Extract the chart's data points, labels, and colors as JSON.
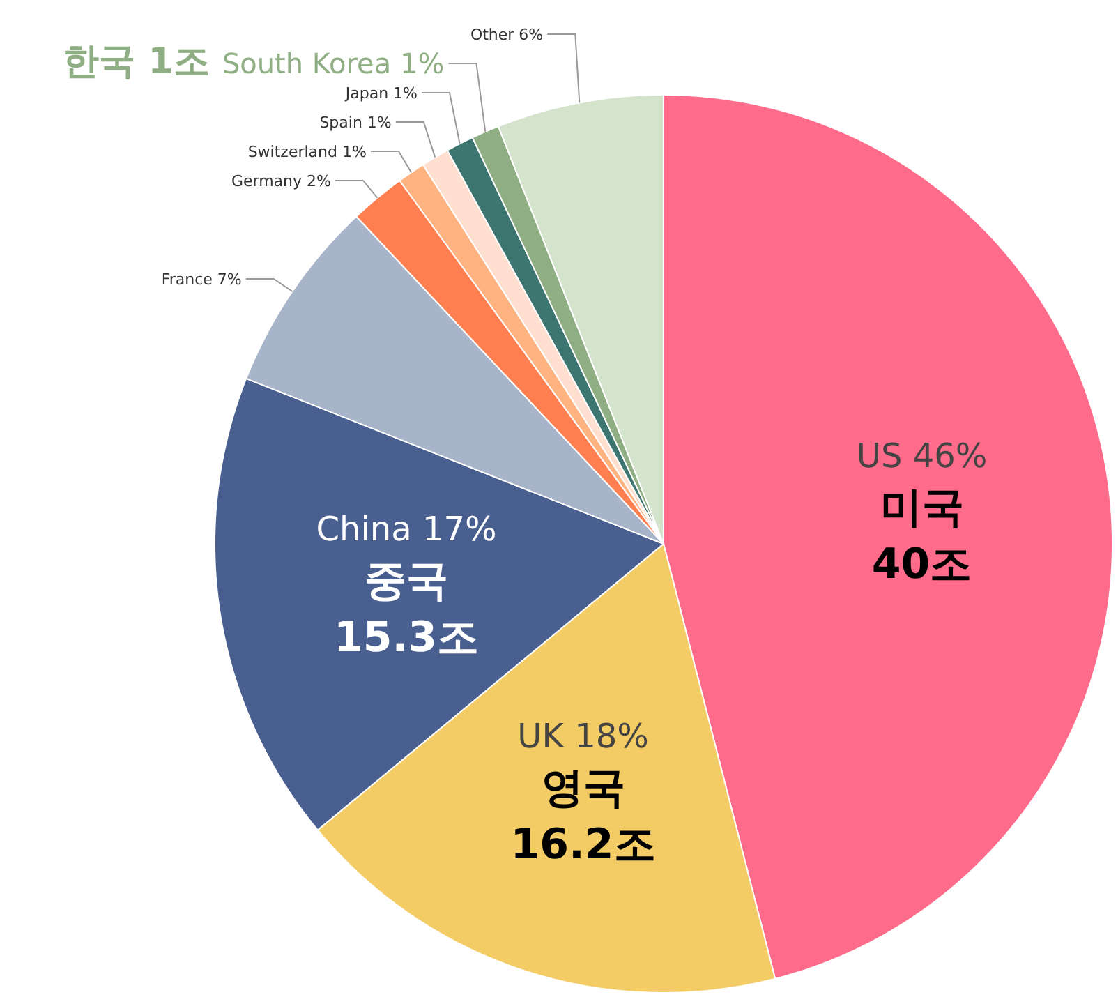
{
  "chart_data": {
    "type": "pie",
    "categories": [
      "US",
      "UK",
      "China",
      "France",
      "Germany",
      "Switzerland",
      "Spain",
      "Japan",
      "South Korea",
      "Other"
    ],
    "values": [
      46,
      18,
      17,
      7,
      2,
      1,
      1,
      1,
      1,
      6
    ],
    "value_labels": [
      "46%",
      "18%",
      "17%",
      "7%",
      "2%",
      "1%",
      "1%",
      "1%",
      "1%",
      "6%"
    ],
    "colors": [
      "#ff6b8a",
      "#f4cc66",
      "#485f8f",
      "#a8b4c9",
      "#ff7f50",
      "#ffb380",
      "#ffe0d0",
      "#3d7570",
      "#8fae84",
      "#d3e3cc"
    ],
    "annotations": [
      {
        "text": "미국\n40조",
        "x": "US"
      },
      {
        "text": "영국\n16.2조",
        "x": "UK"
      },
      {
        "text": "중국\n15.3조",
        "x": "China"
      },
      {
        "text": "한국 1조",
        "x": "South Korea"
      }
    ]
  }
}
